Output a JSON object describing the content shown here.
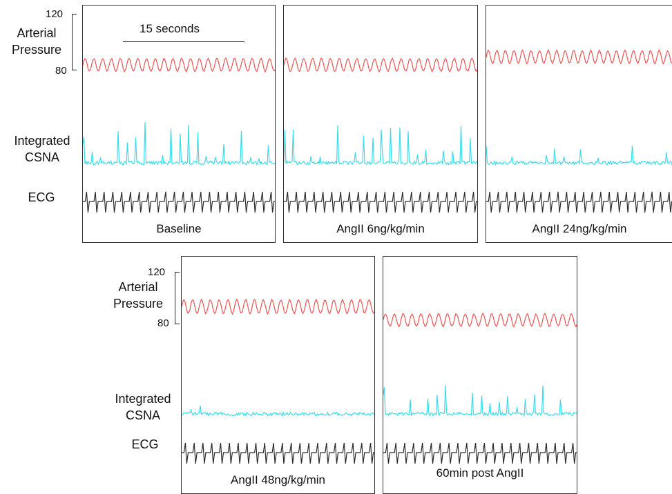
{
  "axis": {
    "pressure_label_line1": "Arterial",
    "pressure_label_line2": "Pressure",
    "pressure_max": "120",
    "pressure_min": "80",
    "csna_label_line1": "Integrated",
    "csna_label_line2": "CSNA",
    "ecg_label": "ECG"
  },
  "time_scale": {
    "label": "15 seconds"
  },
  "colors": {
    "pressure": "#f05050",
    "csna": "#38dceb",
    "ecg": "#2a2a2a",
    "ecg_alt": "#9a9a9a"
  },
  "panels": [
    {
      "condition": "Baseline",
      "pressure_level": 0.55,
      "pressure_amp": 0.4,
      "csna_activity": 0.9,
      "beats": 22
    },
    {
      "condition": "AngII 6ng/kg/min",
      "pressure_level": 0.55,
      "pressure_amp": 0.4,
      "csna_activity": 0.8,
      "beats": 22
    },
    {
      "condition": "AngII 24ng/kg/min",
      "pressure_level": 0.85,
      "pressure_amp": 0.4,
      "csna_activity": 0.35,
      "beats": 22
    },
    {
      "condition": "AngII 48ng/kg/min",
      "pressure_level": 0.9,
      "pressure_amp": 0.5,
      "csna_activity": 0.15,
      "beats": 22
    },
    {
      "condition": "60min post AngII",
      "pressure_level": 0.4,
      "pressure_amp": 0.35,
      "csna_activity": 0.6,
      "beats": 22
    }
  ]
}
